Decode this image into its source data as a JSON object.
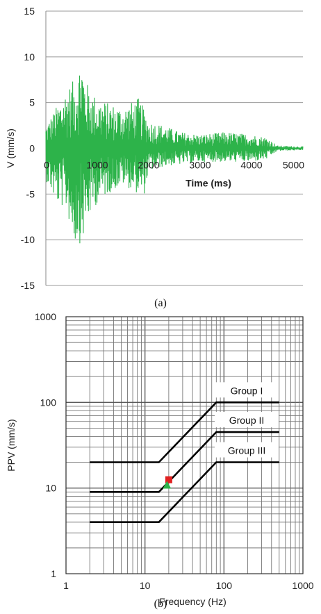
{
  "chart_data": [
    {
      "type": "line",
      "title": "",
      "xlabel": "Time (ms)",
      "ylabel": "V (mm/s)",
      "xlim": [
        0,
        5000
      ],
      "ylim": [
        -15,
        15
      ],
      "x_ticks": [
        0,
        1000,
        2000,
        3000,
        4000,
        5000
      ],
      "y_ticks": [
        15,
        10,
        5,
        0,
        -5,
        -10,
        -15
      ],
      "x_tick_labels": [
        "0",
        "1000",
        "2000",
        "3000",
        "4000",
        "5000"
      ],
      "y_tick_labels": [
        "15",
        "10",
        "5",
        "0",
        "-5",
        "-10",
        "-15"
      ],
      "grid": "horizontal",
      "line_color": "#2db34a",
      "caption": "(a)",
      "series": [
        {
          "envelope": {
            "t": [
              0,
              200,
              400,
              550,
              700,
              750,
              850,
              1000,
              1200,
              1500,
              1800,
              1900,
              2000,
              2300,
              2600,
              3000,
              3500,
              4000,
              4300,
              4500,
              5000
            ],
            "pos": [
              2.5,
              4.5,
              6.5,
              7.5,
              10.3,
              8.0,
              6.5,
              5.5,
              5.0,
              4.5,
              5.5,
              4.5,
              3.0,
              2.5,
              1.8,
              1.5,
              1.8,
              1.5,
              1.2,
              0.3,
              0.2
            ],
            "neg": [
              -3.5,
              -6.0,
              -6.8,
              -10.4,
              -10.4,
              -9.5,
              -7.5,
              -6.0,
              -5.0,
              -4.0,
              -5.0,
              -5.5,
              -2.5,
              -2.0,
              -1.8,
              -1.5,
              -1.5,
              -1.5,
              -1.2,
              -0.3,
              -0.2
            ]
          }
        }
      ]
    },
    {
      "type": "line",
      "title": "",
      "xlabel": "Frequency (Hz)",
      "ylabel": "PPV  (mm/s)",
      "xscale": "log",
      "yscale": "log",
      "xlim": [
        1,
        1000
      ],
      "ylim": [
        1,
        1000
      ],
      "x_tick_labels": [
        "1",
        "10",
        "100",
        "1000"
      ],
      "y_tick_labels": [
        "1000",
        "100",
        "10",
        "1"
      ],
      "grid": "both",
      "caption": "(b)",
      "series": [
        {
          "name": "Group I",
          "x": [
            2,
            15,
            80,
            500
          ],
          "y": [
            20,
            20,
            100,
            100
          ]
        },
        {
          "name": "Group II",
          "x": [
            2,
            15,
            80,
            500
          ],
          "y": [
            9,
            9,
            45,
            45
          ]
        },
        {
          "name": "Group III",
          "x": [
            2,
            15,
            80,
            500
          ],
          "y": [
            4,
            4,
            20,
            20
          ]
        }
      ],
      "points": [
        {
          "x": 20,
          "y": 12.5,
          "color": "#e02020",
          "shape": "square"
        },
        {
          "x": 19,
          "y": 10.8,
          "color": "#2db34a",
          "shape": "triangle"
        }
      ]
    }
  ]
}
